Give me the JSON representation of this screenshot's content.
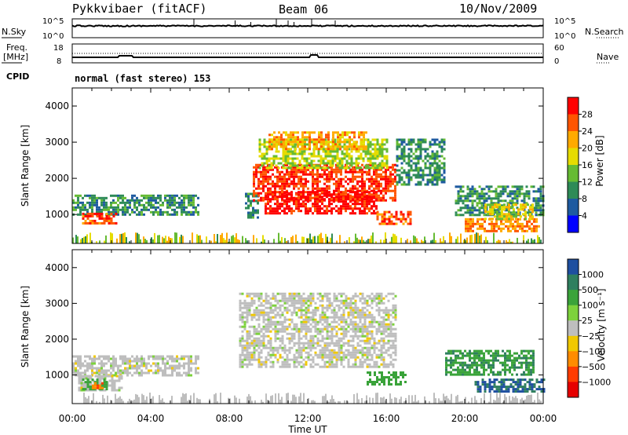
{
  "header": {
    "station": "Pykkvibaer (fitACF)",
    "beam": "Beam 06",
    "date": "10/Nov/2009"
  },
  "top_panels": {
    "nsky_label": "N.Sky",
    "nsky_ticks": [
      "10^5",
      "10^0"
    ],
    "nsearch_label": "N.Search",
    "nsearch_ticks": [
      "10^5",
      "10^0"
    ],
    "freq_label": "Freq.",
    "freq_unit": "[MHz]",
    "freq_ticks": [
      "18",
      "8"
    ],
    "nave_label": "Nave",
    "nave_ticks": [
      "60",
      "0"
    ],
    "cpid_label": "CPID",
    "cpid_text": "normal (fast stereo) 153"
  },
  "chart_data": [
    {
      "type": "heatmap",
      "name": "power",
      "ylabel": "Slant Range [km]",
      "y_ticks": [
        1000,
        2000,
        3000,
        4000
      ],
      "ylim": [
        200,
        4500
      ],
      "xlim_hours": [
        0,
        24
      ],
      "colorbar": {
        "label": "Power [dB]",
        "ticks": [
          "28",
          "24",
          "20",
          "16",
          "12",
          "8",
          "4"
        ],
        "colors": [
          "#ff0000",
          "#ff5500",
          "#ffaa00",
          "#e6dc00",
          "#66bb33",
          "#2e8b57",
          "#1e5aa0",
          "#0000ff"
        ]
      },
      "regions": [
        {
          "t": [
            0.0,
            6.4
          ],
          "r": [
            1000,
            1550
          ],
          "v": 8
        },
        {
          "t": [
            0.5,
            2.2
          ],
          "r": [
            750,
            1050
          ],
          "v": 24
        },
        {
          "t": [
            8.8,
            9.5
          ],
          "r": [
            900,
            1600
          ],
          "v": 8
        },
        {
          "t": [
            9.2,
            16.5
          ],
          "r": [
            1400,
            2400
          ],
          "v": 26
        },
        {
          "t": [
            9.8,
            15.5
          ],
          "r": [
            1050,
            1650
          ],
          "v": 28
        },
        {
          "t": [
            9.5,
            16.0
          ],
          "r": [
            2300,
            3100
          ],
          "v": 14
        },
        {
          "t": [
            10.0,
            15.0
          ],
          "r": [
            2800,
            3300
          ],
          "v": 20
        },
        {
          "t": [
            15.5,
            17.2
          ],
          "r": [
            750,
            1100
          ],
          "v": 24
        },
        {
          "t": [
            16.5,
            19.0
          ],
          "r": [
            1800,
            3100
          ],
          "v": 8
        },
        {
          "t": [
            19.5,
            24.0
          ],
          "r": [
            1000,
            1800
          ],
          "v": 8
        },
        {
          "t": [
            20.0,
            23.8
          ],
          "r": [
            550,
            900
          ],
          "v": 22
        },
        {
          "t": [
            21.0,
            23.5
          ],
          "r": [
            850,
            1300
          ],
          "v": 16
        }
      ]
    },
    {
      "type": "heatmap",
      "name": "velocity",
      "ylabel": "Slant Range [km]",
      "xlabel": "Time UT",
      "x_ticks": [
        "00:00",
        "04:00",
        "08:00",
        "12:00",
        "16:00",
        "20:00",
        "00:00"
      ],
      "y_ticks": [
        1000,
        2000,
        3000,
        4000
      ],
      "ylim": [
        200,
        4500
      ],
      "xlim_hours": [
        0,
        24
      ],
      "colorbar": {
        "label": "Velocity [m s⁻¹]",
        "ticks": [
          "1000",
          "500",
          "100",
          "25",
          "−25",
          "−100",
          "−500",
          "−1000"
        ],
        "colors": [
          "#1e4fa0",
          "#2f7f5f",
          "#3aa33a",
          "#7dd23c",
          "#bebebe",
          "#f0c800",
          "#ff8c00",
          "#ff3c00",
          "#e60000"
        ]
      },
      "regions": [
        {
          "t": [
            0.0,
            6.4
          ],
          "r": [
            1000,
            1550
          ],
          "v": 0
        },
        {
          "t": [
            0.3,
            2.5
          ],
          "r": [
            600,
            1000
          ],
          "v": 0
        },
        {
          "t": [
            0.5,
            1.8
          ],
          "r": [
            600,
            900
          ],
          "v": 150
        },
        {
          "t": [
            1.0,
            1.6
          ],
          "r": [
            650,
            800
          ],
          "v": -400
        },
        {
          "t": [
            8.5,
            16.5
          ],
          "r": [
            1200,
            3300
          ],
          "v": 0
        },
        {
          "t": [
            15.0,
            17.0
          ],
          "r": [
            750,
            1100
          ],
          "v": 150
        },
        {
          "t": [
            19.0,
            23.5
          ],
          "r": [
            1000,
            1700
          ],
          "v": 400
        },
        {
          "t": [
            20.5,
            24.0
          ],
          "r": [
            550,
            900
          ],
          "v": 1000
        }
      ]
    }
  ]
}
